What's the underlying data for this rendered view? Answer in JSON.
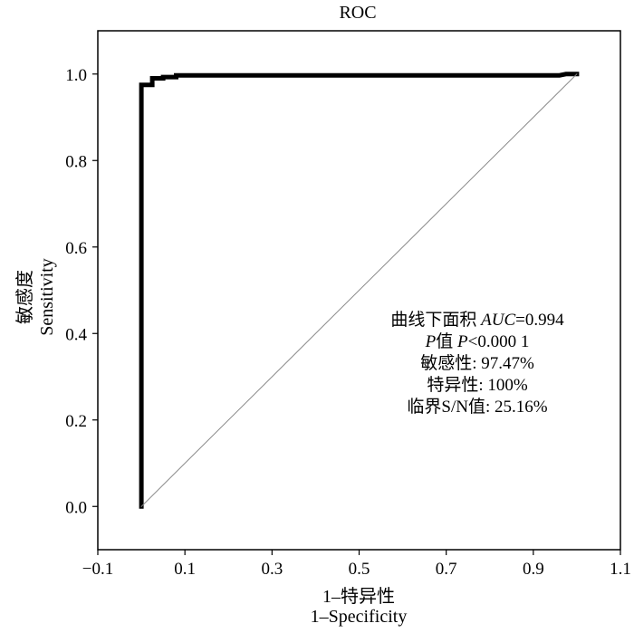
{
  "chart_data": {
    "type": "line",
    "title": "ROC",
    "xlabel_lines": [
      "1–特异性",
      "1–Specificity"
    ],
    "ylabel_lines": [
      "敏感度",
      "Sensitivity"
    ],
    "xlim": [
      -0.1,
      1.1
    ],
    "ylim": [
      -0.1,
      1.1
    ],
    "xticks": [
      -0.1,
      0.1,
      0.3,
      0.5,
      0.7,
      0.9,
      1.1
    ],
    "xtick_labels": [
      "−0.1",
      "0.1",
      "0.3",
      "0.5",
      "0.7",
      "0.9",
      "1.1"
    ],
    "yticks": [
      0.0,
      0.2,
      0.4,
      0.6,
      0.8,
      1.0
    ],
    "ytick_labels": [
      "0.0",
      "0.2",
      "0.4",
      "0.6",
      "0.8",
      "1.0"
    ],
    "grid": false,
    "series": [
      {
        "role": "roc",
        "color": "#000000",
        "x": [
          0.0,
          0.0,
          0.0,
          0.025,
          0.025,
          0.05,
          0.05,
          0.08,
          0.08,
          0.96,
          0.975,
          1.0
        ],
        "y": [
          0.0,
          0.9747,
          0.975,
          0.975,
          0.99,
          0.99,
          0.993,
          0.993,
          0.997,
          0.997,
          1.0,
          1.0
        ]
      },
      {
        "role": "reference",
        "color": "#888888",
        "x": [
          0.0,
          1.0
        ],
        "y": [
          0.0,
          1.0
        ]
      }
    ],
    "annotation": {
      "lines": [
        {
          "parts": [
            {
              "text": "曲线下面积 ",
              "italic": false
            },
            {
              "text": "AUC",
              "italic": true
            },
            {
              "text": "=0.994",
              "italic": false
            }
          ]
        },
        {
          "parts": [
            {
              "text": "P",
              "italic": true
            },
            {
              "text": "值 ",
              "italic": false
            },
            {
              "text": "P",
              "italic": true
            },
            {
              "text": "<0.000 1",
              "italic": false
            }
          ]
        },
        {
          "parts": [
            {
              "text": "敏感性: 97.47%",
              "italic": false
            }
          ]
        },
        {
          "parts": [
            {
              "text": "特异性: 100%",
              "italic": false
            }
          ]
        },
        {
          "parts": [
            {
              "text": "临界S/N值: 25.16%",
              "italic": false
            }
          ]
        }
      ]
    }
  }
}
